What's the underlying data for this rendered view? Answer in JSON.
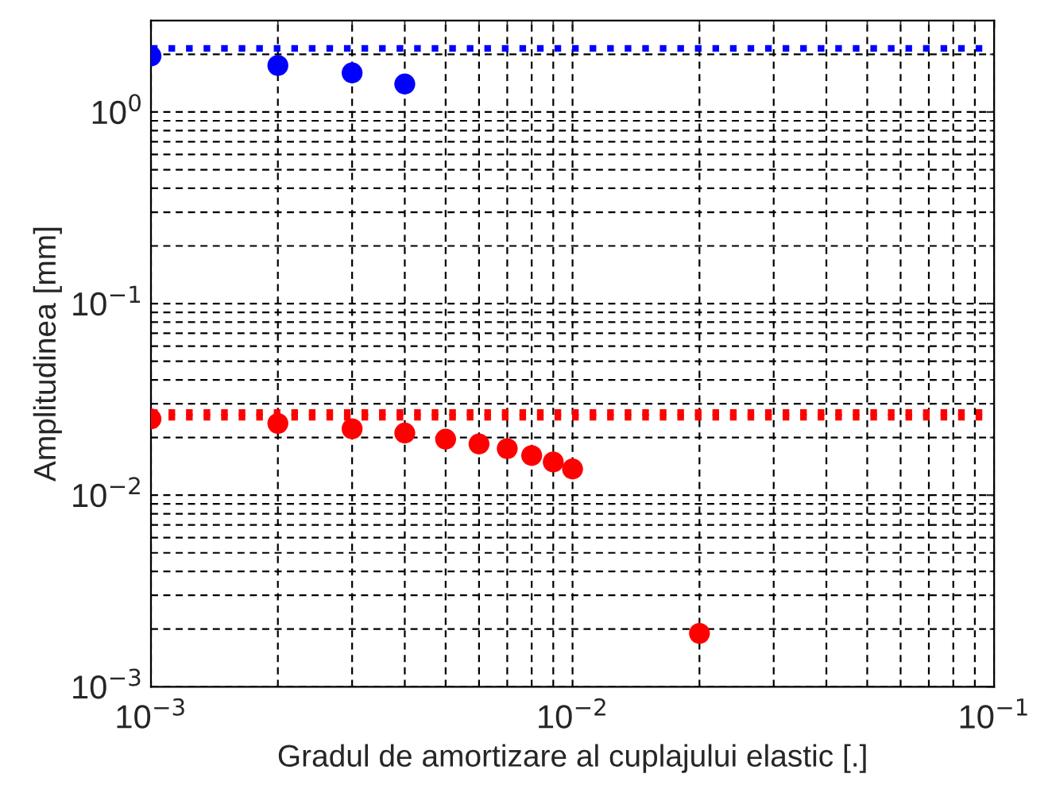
{
  "chart_data": {
    "type": "scatter",
    "xlabel": "Gradul de amortizare al cuplajului elastic [.]",
    "ylabel": "Amplitudinea [mm]",
    "log": "xy",
    "grid": true,
    "marker": "circle",
    "xlim": [
      0.001,
      0.1
    ],
    "ylim": [
      0.001,
      3
    ],
    "xticks": [
      {
        "value": 0.001,
        "label": "10$^{−3}$"
      },
      {
        "value": 0.01,
        "label": "10$^{−2}$"
      },
      {
        "value": 0.1,
        "label": "10$^{−1}$"
      }
    ],
    "yticks": [
      {
        "value": 0.001,
        "label": "10$^{−3}$"
      },
      {
        "value": 0.01,
        "label": "10$^{−2}$"
      },
      {
        "value": 0.1,
        "label": "10$^{−1}$"
      },
      {
        "value": 1,
        "label": "10$^{0}$"
      }
    ],
    "series": [
      {
        "color": "#0000ff",
        "x": [
          0.001,
          0.002,
          0.003,
          0.004
        ],
        "values": [
          1.96,
          1.75,
          1.6,
          1.4
        ]
      },
      {
        "color": "#ff0000",
        "x": [
          0.001,
          0.002,
          0.003,
          0.004,
          0.005,
          0.006,
          0.007,
          0.008,
          0.009,
          0.01,
          0.02
        ],
        "values": [
          0.025,
          0.0237,
          0.0222,
          0.0211,
          0.0196,
          0.0185,
          0.0175,
          0.0161,
          0.0149,
          0.0137,
          0.0019
        ]
      }
    ],
    "ref_lines": [
      {
        "axis": "y",
        "value": 2.15,
        "color": "#0000ff",
        "line_style": "dotted"
      },
      {
        "axis": "y",
        "value": 0.027,
        "color": "#ff0000",
        "line_style": "dotted"
      },
      {
        "axis": "y",
        "value": 0.0255,
        "color": "#ff0000",
        "line_style": "dotted"
      }
    ]
  }
}
